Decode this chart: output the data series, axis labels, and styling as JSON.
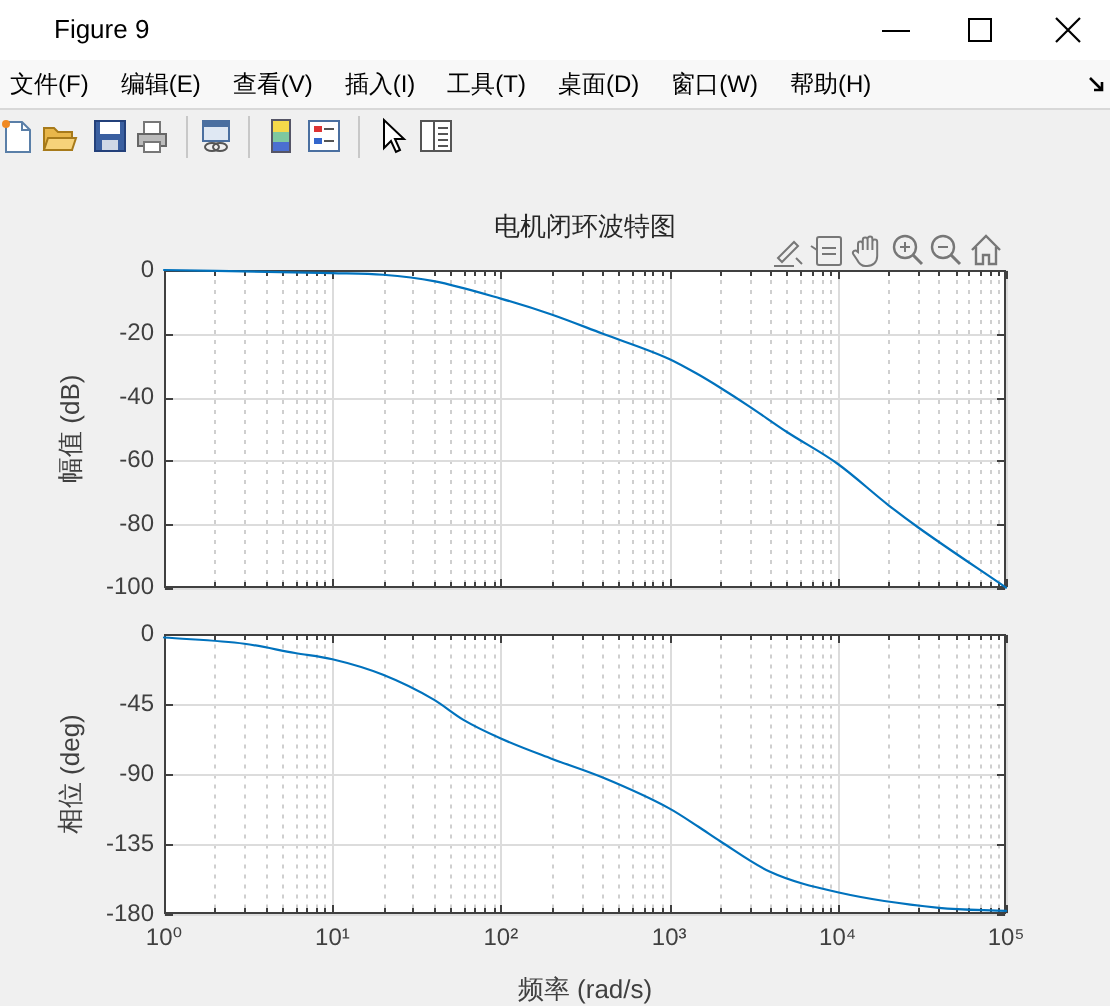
{
  "chart_data": [
    {
      "type": "line",
      "title": "电机闭环波特图",
      "ylabel": "幅值 (dB)",
      "annotations": [
        "Figure 9",
        "文件(F)",
        "编辑(E)",
        "查看(V)",
        "插入(I)",
        "工具(T)",
        "桌面(D)",
        "窗口(W)",
        "帮助(H)"
      ],
      "x": [
        1,
        10,
        20,
        40,
        100,
        200,
        400,
        1000,
        1500,
        2000,
        3000,
        5000,
        10000,
        20000,
        30000,
        100000
      ],
      "series": [
        {
          "color": "#0072bd",
          "values": [
            0,
            -1,
            -1.5,
            -3.5,
            -9,
            -14,
            -20,
            -28,
            -33,
            -37,
            -43,
            -51,
            -61,
            -74,
            -81,
            -100
          ]
        }
      ],
      "xlim": [
        1,
        100000
      ],
      "xticks": [
        1,
        {
          "value": 2,
          "label": null
        },
        {
          "value": 3,
          "label": null
        },
        {
          "value": 4,
          "label": null
        },
        {
          "value": 5,
          "label": null
        },
        {
          "value": 6,
          "label": null
        },
        {
          "value": 7,
          "label": null
        },
        {
          "value": 8,
          "label": null
        },
        {
          "value": 9,
          "label": null
        },
        10,
        {
          "value": 20,
          "label": null
        },
        {
          "value": 30,
          "label": null
        },
        {
          "value": 40,
          "label": null
        },
        {
          "value": 50,
          "label": null
        },
        {
          "value": 60,
          "label": null
        },
        {
          "value": 70,
          "label": null
        },
        {
          "value": 80,
          "label": null
        },
        {
          "value": 90,
          "label": null
        },
        100,
        {
          "value": 200,
          "label": null
        },
        {
          "value": 300,
          "label": null
        },
        {
          "value": 400,
          "label": null
        },
        {
          "value": 500,
          "label": null
        },
        {
          "value": 600,
          "label": null
        },
        {
          "value": 700,
          "label": null
        },
        {
          "value": 800,
          "label": null
        },
        {
          "value": 900,
          "label": null
        },
        1000,
        {
          "value": 2000,
          "label": null
        },
        {
          "value": 3000,
          "label": null
        },
        {
          "value": 4000,
          "label": null
        },
        {
          "value": 5000,
          "label": null
        },
        {
          "value": 6000,
          "label": null
        },
        {
          "value": 7000,
          "label": null
        },
        {
          "value": 8000,
          "label": null
        },
        {
          "value": 9000,
          "label": null
        },
        10000,
        {
          "value": 20000,
          "label": null
        },
        {
          "value": 30000,
          "label": null
        },
        {
          "value": 40000,
          "label": null
        },
        {
          "value": 50000,
          "label": null
        },
        {
          "value": 60000,
          "label": null
        },
        {
          "value": 70000,
          "label": null
        },
        {
          "value": 80000,
          "label": null
        },
        {
          "value": 90000,
          "label": null
        },
        100000
      ],
      "ylim": [
        -100,
        0
      ],
      "yticks": [
        -100,
        -80,
        -60,
        -40,
        -20,
        0
      ],
      "log": "x",
      "grid": true,
      "marker": "none",
      "line_style": "solid",
      "tick_labels": "y"
    },
    {
      "type": "line",
      "xlabel": "频率 (rad/s)",
      "ylabel": "相位 (deg)",
      "x": [
        1,
        3,
        6,
        10,
        20,
        40,
        60,
        100,
        200,
        400,
        1000,
        1500,
        2000,
        4000,
        10000,
        40000,
        100000
      ],
      "series": [
        {
          "color": "#0072bd",
          "values": [
            -2,
            -6,
            -12,
            -16,
            -26,
            -42,
            -55,
            -67,
            -80,
            -92,
            -112,
            -124,
            -133,
            -153,
            -166,
            -176,
            -178
          ]
        }
      ],
      "xlim": [
        1,
        100000
      ],
      "xticks": [
        {
          "value": 1,
          "label": "10⁰"
        },
        {
          "value": 2,
          "label": null
        },
        {
          "value": 3,
          "label": null
        },
        {
          "value": 4,
          "label": null
        },
        {
          "value": 5,
          "label": null
        },
        {
          "value": 6,
          "label": null
        },
        {
          "value": 7,
          "label": null
        },
        {
          "value": 8,
          "label": null
        },
        {
          "value": 9,
          "label": null
        },
        {
          "value": 10,
          "label": "10¹"
        },
        {
          "value": 20,
          "label": null
        },
        {
          "value": 30,
          "label": null
        },
        {
          "value": 40,
          "label": null
        },
        {
          "value": 50,
          "label": null
        },
        {
          "value": 60,
          "label": null
        },
        {
          "value": 70,
          "label": null
        },
        {
          "value": 80,
          "label": null
        },
        {
          "value": 90,
          "label": null
        },
        {
          "value": 100,
          "label": "10²"
        },
        {
          "value": 200,
          "label": null
        },
        {
          "value": 300,
          "label": null
        },
        {
          "value": 400,
          "label": null
        },
        {
          "value": 500,
          "label": null
        },
        {
          "value": 600,
          "label": null
        },
        {
          "value": 700,
          "label": null
        },
        {
          "value": 800,
          "label": null
        },
        {
          "value": 900,
          "label": null
        },
        {
          "value": 1000,
          "label": "10³"
        },
        {
          "value": 2000,
          "label": null
        },
        {
          "value": 3000,
          "label": null
        },
        {
          "value": 4000,
          "label": null
        },
        {
          "value": 5000,
          "label": null
        },
        {
          "value": 6000,
          "label": null
        },
        {
          "value": 7000,
          "label": null
        },
        {
          "value": 8000,
          "label": null
        },
        {
          "value": 9000,
          "label": null
        },
        {
          "value": 10000,
          "label": "10⁴"
        },
        {
          "value": 20000,
          "label": null
        },
        {
          "value": 30000,
          "label": null
        },
        {
          "value": 40000,
          "label": null
        },
        {
          "value": 50000,
          "label": null
        },
        {
          "value": 60000,
          "label": null
        },
        {
          "value": 70000,
          "label": null
        },
        {
          "value": 80000,
          "label": null
        },
        {
          "value": 90000,
          "label": null
        },
        {
          "value": 100000,
          "label": "10⁵"
        }
      ],
      "ylim": [
        -180,
        0
      ],
      "yticks": [
        -180,
        -135,
        -90,
        -45,
        0
      ],
      "log": "x",
      "grid": true,
      "marker": "none",
      "line_style": "solid"
    }
  ]
}
